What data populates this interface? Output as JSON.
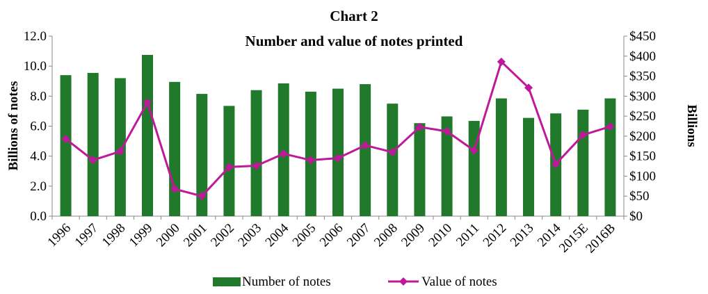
{
  "chart_data": {
    "type": "bar",
    "title": "Chart 2",
    "subtitle": "Number and value of notes printed",
    "ylabel": "Billions  of notes",
    "y2label": "Billions",
    "categories": [
      "1996",
      "1997",
      "1998",
      "1999",
      "2000",
      "2001",
      "2002",
      "2003",
      "2004",
      "2005",
      "2006",
      "2007",
      "2008",
      "2009",
      "2010",
      "2011",
      "2012",
      "2013",
      "2014",
      "2015E",
      "2016B"
    ],
    "ylim": [
      0,
      12
    ],
    "y2lim": [
      0,
      450
    ],
    "yticks": [
      "0.0",
      "2.0",
      "4.0",
      "6.0",
      "8.0",
      "10.0",
      "12.0"
    ],
    "y2ticks": [
      "$0",
      "$50",
      "$100",
      "$150",
      "$200",
      "$250",
      "$300",
      "$350",
      "$400",
      "$450"
    ],
    "series": [
      {
        "name": "Number of notes",
        "type": "bar",
        "axis": "left",
        "color": "#217a2b",
        "values": [
          9.4,
          9.55,
          9.2,
          10.75,
          8.95,
          8.15,
          7.35,
          8.4,
          8.85,
          8.3,
          8.5,
          8.8,
          7.5,
          6.2,
          6.65,
          6.35,
          7.85,
          6.55,
          6.85,
          7.1,
          7.85
        ]
      },
      {
        "name": "Value of notes",
        "type": "line",
        "axis": "right",
        "color": "#c0189a",
        "values": [
          193,
          140,
          162,
          284,
          68,
          50,
          123,
          126,
          156,
          140,
          145,
          177,
          160,
          223,
          212,
          164,
          386,
          321,
          130,
          203,
          224
        ]
      }
    ],
    "legend_position": "bottom",
    "grid": false
  }
}
